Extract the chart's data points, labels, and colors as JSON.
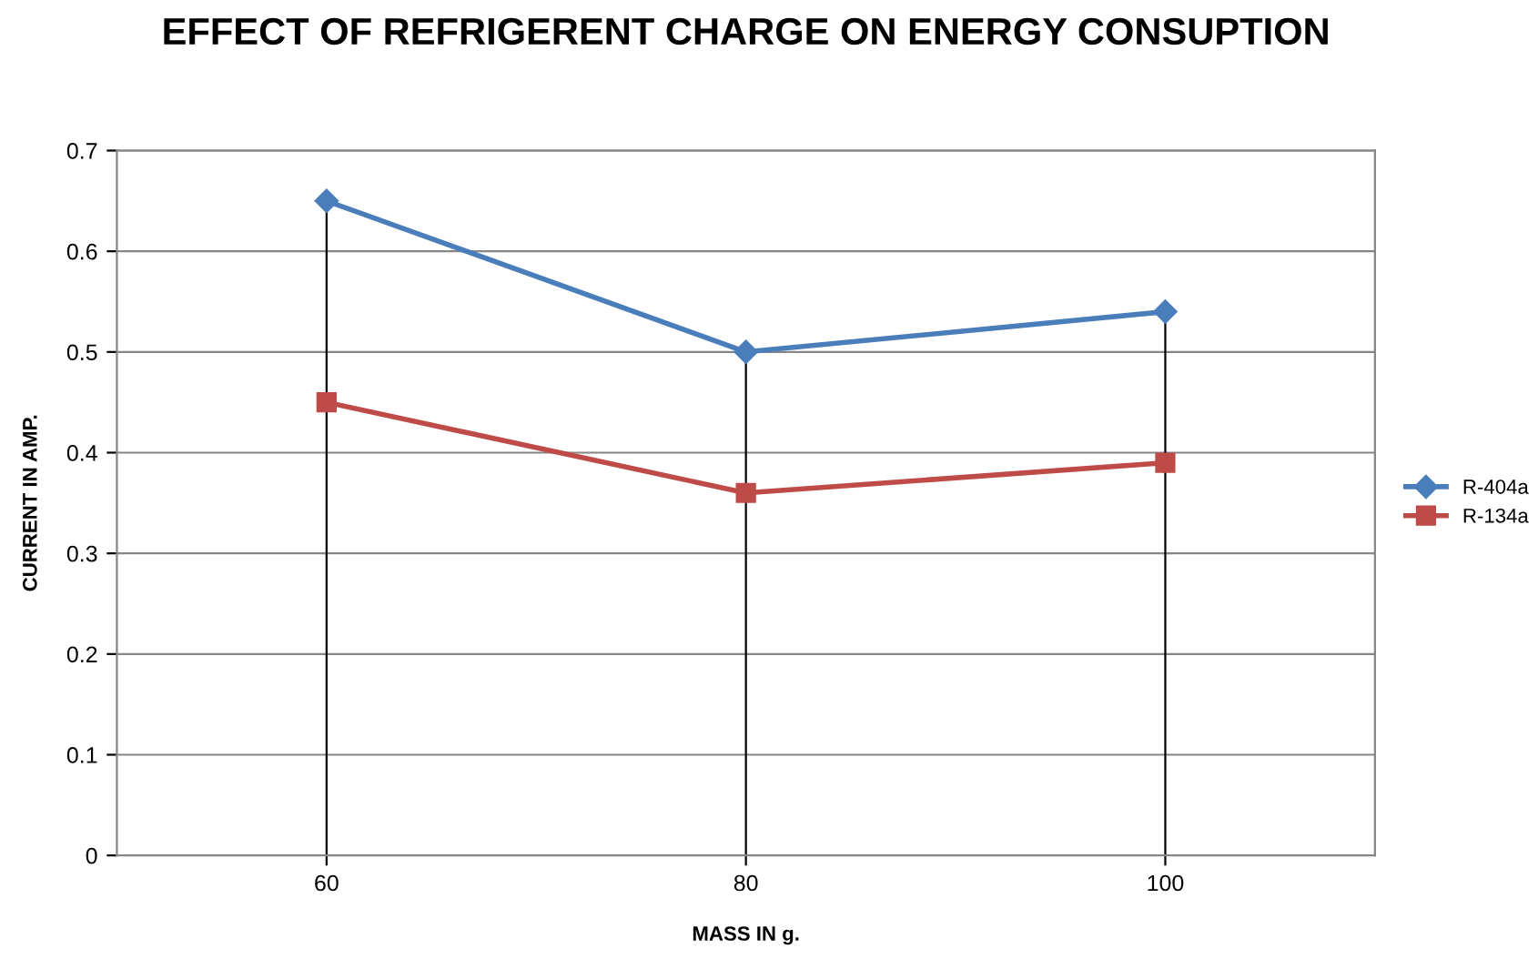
{
  "chart_data": {
    "type": "line",
    "title": "EFFECT OF REFRIGERENT CHARGE ON ENERGY CONSUPTION",
    "xlabel": "MASS IN g.",
    "ylabel": "CURRENT IN AMP.",
    "categories": [
      "60",
      "80",
      "100"
    ],
    "series": [
      {
        "name": "R-404a",
        "color": "#4a7ebb",
        "marker": "diamond",
        "values": [
          0.65,
          0.5,
          0.54
        ]
      },
      {
        "name": "R-134a",
        "color": "#be4b48",
        "marker": "square",
        "values": [
          0.45,
          0.36,
          0.39
        ]
      }
    ],
    "ref_lines": [
      {
        "axis": "x",
        "value": "60",
        "color": "#000000"
      },
      {
        "axis": "x",
        "value": "80",
        "color": "#000000"
      },
      {
        "axis": "x",
        "value": "100",
        "color": "#000000"
      }
    ],
    "ylim": [
      0,
      0.7
    ],
    "yticks": [
      0,
      0.1,
      0.2,
      0.3,
      0.4,
      0.5,
      0.6,
      0.7
    ],
    "grid": "y",
    "legend": "right",
    "line_style": "solid"
  }
}
